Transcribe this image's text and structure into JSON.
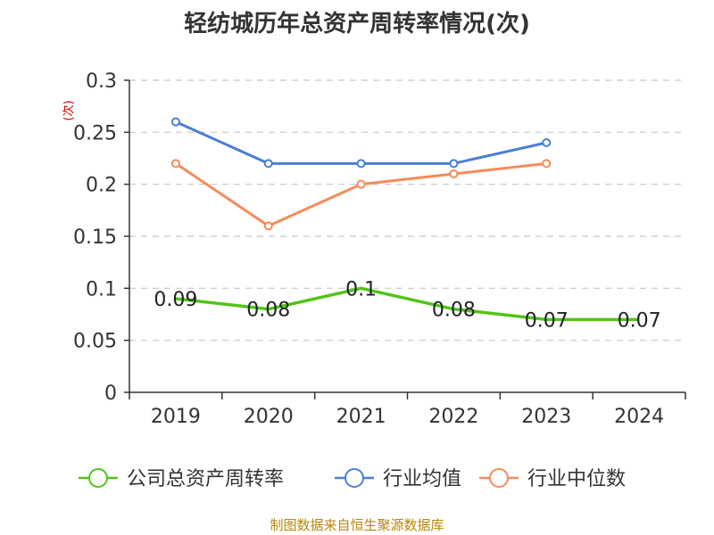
{
  "title": "轻纺城历年总资产周转率情况(次)",
  "y_unit": "(次)",
  "source": "制图数据来自恒生聚源数据库",
  "colors": {
    "company": "#52c41a",
    "industry_avg": "#4a7fd4",
    "industry_median": "#f58c5a",
    "grid": "#c8c8c8",
    "axis": "#333333"
  },
  "chart_data": {
    "type": "line",
    "title": "轻纺城历年总资产周转率情况(次)",
    "ylabel": "(次)",
    "categories": [
      "2019",
      "2020",
      "2021",
      "2022",
      "2023",
      "2024"
    ],
    "ylim": [
      0,
      0.3
    ],
    "yticks": [
      0,
      0.05,
      0.1,
      0.15,
      0.2,
      0.25,
      0.3
    ],
    "ytick_labels": [
      "0",
      "0.05",
      "0.1",
      "0.15",
      "0.2",
      "0.25",
      "0.3"
    ],
    "grid": true,
    "legend_position": "bottom",
    "series": [
      {
        "name": "公司总资产周转率",
        "color": "#52c41a",
        "values": [
          0.09,
          0.08,
          0.1,
          0.08,
          0.07,
          0.07
        ],
        "labels": [
          "0.09",
          "0.08",
          "0.1",
          "0.08",
          "0.07",
          "0.07"
        ]
      },
      {
        "name": "行业均值",
        "color": "#4a7fd4",
        "values": [
          0.26,
          0.22,
          0.22,
          0.22,
          0.24,
          null
        ]
      },
      {
        "name": "行业中位数",
        "color": "#f58c5a",
        "values": [
          0.22,
          0.16,
          0.2,
          0.21,
          0.22,
          null
        ]
      }
    ]
  }
}
